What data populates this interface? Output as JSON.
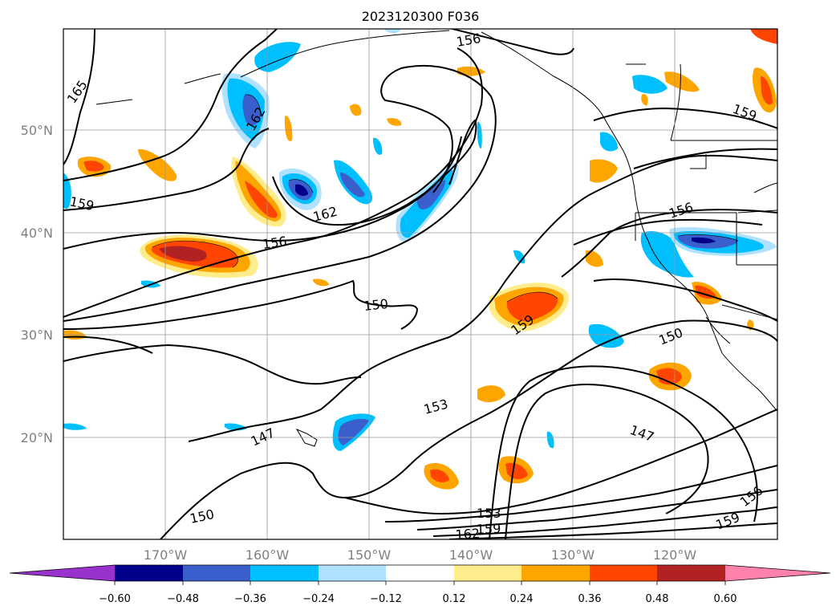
{
  "title": "2023120300 F036",
  "latitude_labels": [
    "50°N",
    "40°N",
    "30°N",
    "20°N"
  ],
  "longitude_labels": [
    "170°W",
    "160°W",
    "150°W",
    "140°W",
    "130°W",
    "120°W"
  ],
  "colorbar": {
    "extend": "both",
    "tick_labels": [
      "−0.60",
      "−0.48",
      "−0.36",
      "−0.24",
      "−0.12",
      "0.12",
      "0.24",
      "0.36",
      "0.48",
      "0.60"
    ],
    "colors": {
      "under": "#9932cc",
      "b1": "#00008b",
      "b2": "#3a5fcd",
      "b3": "#00bfff",
      "b4": "#b0e2ff",
      "b5": "#ffffff",
      "b6": "#ffec8b",
      "b7": "#ffa500",
      "b8": "#ff4500",
      "b9": "#b22222",
      "over": "#ff82ab"
    }
  },
  "contour_labels": [
    "165",
    "162",
    "162",
    "159",
    "156",
    "156",
    "156",
    "150",
    "159",
    "150",
    "159",
    "153",
    "147",
    "147",
    "150",
    "153",
    "159",
    "162",
    "159",
    "156"
  ]
}
